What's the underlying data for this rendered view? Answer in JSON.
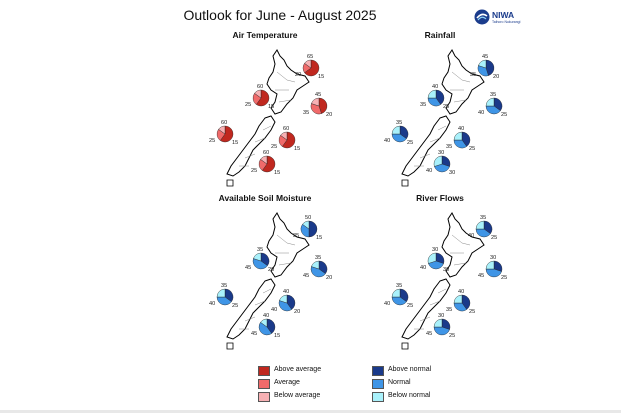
{
  "title": "Outlook for June - August 2025",
  "logo": {
    "name": "NIWA",
    "tagline": "Taihoro Nukurangi"
  },
  "colors": {
    "temp_above": "#c0281f",
    "temp_near": "#f06a6a",
    "temp_below": "#f7b1b4",
    "rain_above": "#1a3a8a",
    "rain_near": "#3f95e6",
    "rain_below": "#a9f1fb",
    "land": "#ffffff",
    "outline": "#000000",
    "region_line": "#888888"
  },
  "panels": [
    {
      "title": "Air Temperature",
      "scheme": "temp",
      "pies": [
        {
          "above": 65,
          "near": 20,
          "below": 15,
          "labels": [
            "65",
            "20",
            "15"
          ]
        },
        {
          "above": 60,
          "near": 25,
          "below": 15,
          "labels": [
            "60",
            "25",
            "15"
          ]
        },
        {
          "above": 45,
          "near": 35,
          "below": 20,
          "labels": [
            "45",
            "35",
            "20"
          ]
        },
        {
          "above": 60,
          "near": 25,
          "below": 15,
          "labels": [
            "60",
            "25",
            "15"
          ]
        },
        {
          "above": 60,
          "near": 25,
          "below": 15,
          "labels": [
            "60",
            "25",
            "15"
          ]
        },
        {
          "above": 60,
          "near": 25,
          "below": 15,
          "labels": [
            "60",
            "25",
            "15"
          ]
        }
      ]
    },
    {
      "title": "Rainfall",
      "scheme": "rain",
      "pies": [
        {
          "above": 45,
          "near": 35,
          "below": 20,
          "labels": [
            "45",
            "35",
            "20"
          ]
        },
        {
          "above": 40,
          "near": 35,
          "below": 25,
          "labels": [
            "40",
            "35",
            "25"
          ]
        },
        {
          "above": 35,
          "near": 40,
          "below": 25,
          "labels": [
            "35",
            "40",
            "25"
          ]
        },
        {
          "above": 35,
          "near": 40,
          "below": 25,
          "labels": [
            "35",
            "40",
            "25"
          ]
        },
        {
          "above": 40,
          "near": 35,
          "below": 25,
          "labels": [
            "40",
            "35",
            "25"
          ]
        },
        {
          "above": 30,
          "near": 40,
          "below": 30,
          "labels": [
            "30",
            "40",
            "30"
          ]
        }
      ]
    },
    {
      "title": "Available Soil Moisture",
      "scheme": "rain",
      "pies": [
        {
          "above": 50,
          "near": 35,
          "below": 15,
          "labels": [
            "50",
            "35",
            "15"
          ]
        },
        {
          "above": 35,
          "near": 45,
          "below": 20,
          "labels": [
            "35",
            "45",
            "20"
          ]
        },
        {
          "above": 35,
          "near": 45,
          "below": 20,
          "labels": [
            "35",
            "45",
            "20"
          ]
        },
        {
          "above": 35,
          "near": 40,
          "below": 25,
          "labels": [
            "35",
            "40",
            "25"
          ]
        },
        {
          "above": 40,
          "near": 40,
          "below": 20,
          "labels": [
            "40",
            "40",
            "20"
          ]
        },
        {
          "above": 40,
          "near": 45,
          "below": 15,
          "labels": [
            "40",
            "45",
            "15"
          ]
        }
      ]
    },
    {
      "title": "River Flows",
      "scheme": "rain",
      "pies": [
        {
          "above": 35,
          "near": 40,
          "below": 25,
          "labels": [
            "35",
            "40",
            "25"
          ]
        },
        {
          "above": 30,
          "near": 40,
          "below": 30,
          "labels": [
            "30",
            "40",
            "30"
          ]
        },
        {
          "above": 30,
          "near": 45,
          "below": 25,
          "labels": [
            "30",
            "45",
            "25"
          ]
        },
        {
          "above": 35,
          "near": 40,
          "below": 25,
          "labels": [
            "35",
            "40",
            "25"
          ]
        },
        {
          "above": 40,
          "near": 35,
          "below": 25,
          "labels": [
            "40",
            "35",
            "25"
          ]
        },
        {
          "above": 30,
          "near": 45,
          "below": 25,
          "labels": [
            "30",
            "45",
            "25"
          ]
        }
      ]
    }
  ],
  "legend": {
    "temp": [
      "Above average",
      "Average",
      "Below average"
    ],
    "rain": [
      "Above normal",
      "Normal",
      "Below normal"
    ]
  }
}
